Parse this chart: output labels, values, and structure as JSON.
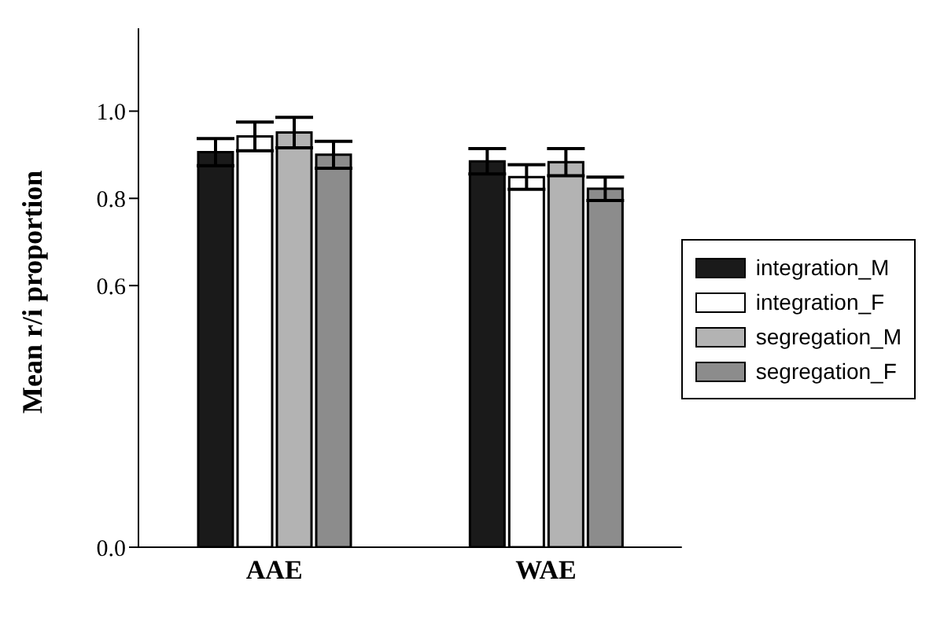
{
  "chart_data": {
    "type": "bar",
    "ylabel": "Mean r/i proportion",
    "categories": [
      "AAE",
      "WAE"
    ],
    "series": [
      {
        "name": "integration_M",
        "color": "#1a1a1a",
        "values": [
          0.906,
          0.885
        ],
        "errors": [
          0.031,
          0.029
        ]
      },
      {
        "name": "integration_F",
        "color": "#ffffff",
        "values": [
          0.942,
          0.849
        ],
        "errors": [
          0.033,
          0.028
        ]
      },
      {
        "name": "segregation_M",
        "color": "#b3b3b3",
        "values": [
          0.951,
          0.883
        ],
        "errors": [
          0.035,
          0.031
        ]
      },
      {
        "name": "segregation_F",
        "color": "#8c8c8c",
        "values": [
          0.9,
          0.822
        ],
        "errors": [
          0.031,
          0.027
        ]
      }
    ],
    "ylim": [
      0,
      1.19
    ],
    "yticks": [
      {
        "value": 0,
        "label": "0.0"
      },
      {
        "value": 0.6,
        "label": "0.6"
      },
      {
        "value": 0.8,
        "label": "0.8"
      },
      {
        "value": 1,
        "label": "1.0"
      }
    ],
    "legend": "right"
  }
}
